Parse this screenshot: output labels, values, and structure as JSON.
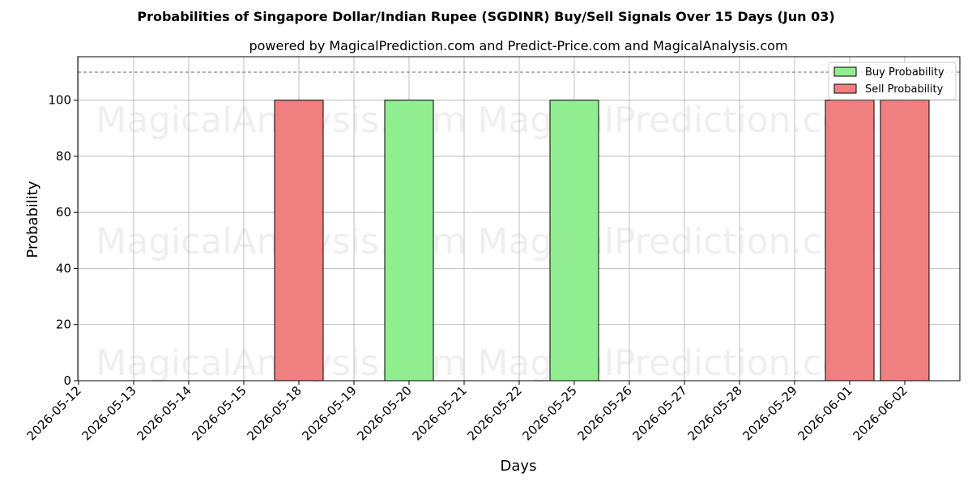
{
  "chart_data": {
    "type": "bar",
    "title": "Probabilities of Singapore Dollar/Indian Rupee (SGDINR) Buy/Sell Signals Over 15 Days (Jun 03)",
    "subtitle": "powered by MagicalPrediction.com and Predict-Price.com and MagicalAnalysis.com",
    "xlabel": "Days",
    "ylabel": "Probability",
    "ylim": [
      0,
      115.5
    ],
    "yticks": [
      0,
      20,
      40,
      60,
      80,
      100
    ],
    "reference_line": 110,
    "grid": true,
    "legend_position": "top-right",
    "categories": [
      "2026-05-12",
      "2026-05-13",
      "2026-05-14",
      "2026-05-15",
      "2026-05-18",
      "2026-05-19",
      "2026-05-20",
      "2026-05-21",
      "2026-05-22",
      "2026-05-25",
      "2026-05-26",
      "2026-05-27",
      "2026-05-28",
      "2026-05-29",
      "2026-06-01",
      "2026-06-02"
    ],
    "series": [
      {
        "name": "Buy Probability",
        "color": "#90ee90",
        "values": [
          0,
          0,
          0,
          0,
          0,
          0,
          100,
          0,
          0,
          100,
          0,
          0,
          0,
          0,
          0,
          0
        ]
      },
      {
        "name": "Sell Probability",
        "color": "#f08080",
        "values": [
          0,
          0,
          0,
          0,
          100,
          0,
          0,
          0,
          0,
          0,
          0,
          0,
          0,
          0,
          100,
          100
        ]
      }
    ]
  },
  "watermarks": [
    "MagicalAnalysis.com",
    "MagicalPrediction.com"
  ]
}
